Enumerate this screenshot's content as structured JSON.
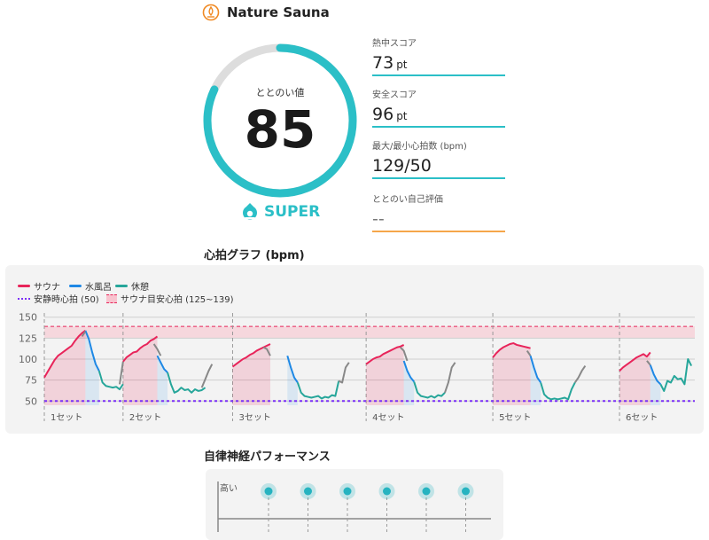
{
  "app": {
    "title": "Nature Sauna",
    "logo_icon": "sauna-flame-icon"
  },
  "totonoi": {
    "label": "ととのい値",
    "value": "85",
    "progress": 0.82,
    "rank": "SUPER",
    "rank_icon": "super-badge-icon",
    "ring_color": "#2bbfc7",
    "track_color": "#dddddd"
  },
  "scores": [
    {
      "label": "熱中スコア",
      "value": "73",
      "unit": "pt",
      "line_color": "#2bbfc7"
    },
    {
      "label": "安全スコア",
      "value": "96",
      "unit": "pt",
      "line_color": "#2bbfc7"
    },
    {
      "label": "最大/最小心拍数 (bpm)",
      "value": "129/50",
      "unit": "",
      "line_color": "#2bbfc7"
    },
    {
      "label": "ととのい自己評価",
      "value": "--",
      "unit": "",
      "line_color": "#f5a64a"
    }
  ],
  "heart_section_title": "心拍グラフ (bpm)",
  "autonomic_section_title": "自律神経パフォーマンス",
  "legend": {
    "sauna": "サウナ",
    "cold_bath": "水風呂",
    "rest": "休憩",
    "resting_hr": "安静時心拍 (50)",
    "target_hr": "サウナ目安心拍 (125~139)"
  },
  "colors": {
    "sauna": "#e8245a",
    "cold_bath": "#1e88e5",
    "rest": "#26a69a",
    "transition": "#888888",
    "resting_line": "#7b2ff7",
    "target_band": "#f8c4cf",
    "accent": "#2bbfc7",
    "self_eval": "#f5a64a"
  },
  "chart_data": {
    "type": "line",
    "ylim": [
      45,
      155
    ],
    "y_ticks": [
      "150",
      "125",
      "100",
      "75",
      "50"
    ],
    "y_tick_values": [
      150,
      125,
      100,
      75,
      50
    ],
    "resting_hr": 50,
    "target_band": [
      125,
      139
    ],
    "set_labels": [
      "1セット",
      "2セット",
      "3セット",
      "4セット",
      "5セット",
      "6セット"
    ],
    "set_starts": [
      0,
      23,
      55,
      94,
      131,
      168
    ],
    "x_max": 190,
    "series": [
      {
        "name": "サウナ",
        "color": "#e8245a",
        "segments": [
          {
            "phase": "sauna",
            "x0": 0,
            "values": [
              78,
              85,
              92,
              99,
              104,
              107,
              110,
              113,
              116,
              122,
              127,
              131,
              134
            ]
          },
          {
            "phase": "sauna",
            "x0": 23,
            "values": [
              97,
              102,
              105,
              108,
              109,
              113,
              116,
              118,
              122,
              124,
              127
            ]
          },
          {
            "phase": "sauna",
            "x0": 55,
            "values": [
              91,
              94,
              97,
              100,
              102,
              105,
              107,
              110,
              112,
              114,
              116,
              118
            ]
          },
          {
            "phase": "sauna",
            "x0": 94,
            "values": [
              94,
              97,
              100,
              102,
              103,
              106,
              108,
              110,
              112,
              114,
              115,
              117
            ]
          },
          {
            "phase": "sauna",
            "x0": 131,
            "values": [
              102,
              107,
              111,
              114,
              116,
              118,
              119,
              117,
              116,
              115,
              114,
              113
            ]
          },
          {
            "phase": "sauna",
            "x0": 168,
            "values": [
              86,
              90,
              93,
              96,
              99,
              102,
              104,
              106,
              103,
              108
            ]
          }
        ]
      },
      {
        "name": "水風呂",
        "color": "#1e88e5",
        "segments": [
          {
            "phase": "cold",
            "x0": 12,
            "values": [
              134,
              124,
              108,
              94,
              86
            ]
          },
          {
            "phase": "cold",
            "x0": 33,
            "values": [
              104,
              96,
              88,
              84
            ]
          },
          {
            "phase": "cold",
            "x0": 71,
            "values": [
              104,
              90,
              78,
              72
            ]
          },
          {
            "phase": "cold",
            "x0": 105,
            "values": [
              98,
              86,
              78,
              73
            ]
          },
          {
            "phase": "cold",
            "x0": 142,
            "values": [
              104,
              90,
              78,
              72
            ]
          },
          {
            "phase": "cold",
            "x0": 177,
            "values": [
              93,
              82,
              74,
              70
            ]
          }
        ]
      },
      {
        "name": "休憩",
        "color": "#26a69a",
        "segments": [
          {
            "phase": "rest",
            "x0": 16,
            "values": [
              86,
              72,
              68,
              67,
              66,
              67,
              64,
              70
            ]
          },
          {
            "phase": "rest",
            "x0": 36,
            "values": [
              84,
              70,
              60,
              62,
              66,
              63,
              64,
              60,
              64,
              62,
              63,
              66
            ]
          },
          {
            "phase": "rest",
            "x0": 74,
            "values": [
              72,
              60,
              56,
              55,
              54,
              55,
              56,
              53,
              55,
              54,
              57,
              56,
              74
            ]
          },
          {
            "phase": "rest",
            "x0": 108,
            "values": [
              73,
              60,
              56,
              55,
              54,
              56,
              54,
              57,
              56,
              60
            ]
          },
          {
            "phase": "rest",
            "x0": 145,
            "values": [
              72,
              58,
              54,
              52,
              53,
              52,
              53,
              54,
              52,
              64,
              72
            ]
          },
          {
            "phase": "rest",
            "x0": 180,
            "values": [
              70,
              62,
              74,
              72,
              80,
              76,
              77,
              70,
              100,
              92
            ]
          }
        ]
      }
    ],
    "transitions": [
      {
        "x0": 11,
        "values": [
          127,
          133
        ]
      },
      {
        "x0": 22,
        "values": [
          70,
          97
        ]
      },
      {
        "x0": 32,
        "values": [
          118,
          112,
          104
        ]
      },
      {
        "x0": 46,
        "values": [
          66,
          76,
          86,
          94
        ]
      },
      {
        "x0": 64,
        "values": [
          114,
          112,
          104
        ]
      },
      {
        "x0": 86,
        "values": [
          74,
          72,
          90,
          96
        ]
      },
      {
        "x0": 104,
        "values": [
          114,
          110,
          98
        ]
      },
      {
        "x0": 117,
        "values": [
          60,
          72,
          90,
          96
        ]
      },
      {
        "x0": 141,
        "values": [
          110,
          104
        ]
      },
      {
        "x0": 155,
        "values": [
          72,
          78,
          86,
          92
        ]
      },
      {
        "x0": 176,
        "values": [
          98,
          93
        ]
      }
    ]
  },
  "autonomic": {
    "y_label": "高い",
    "dots": 6,
    "dot_color": "#26b3c0"
  }
}
